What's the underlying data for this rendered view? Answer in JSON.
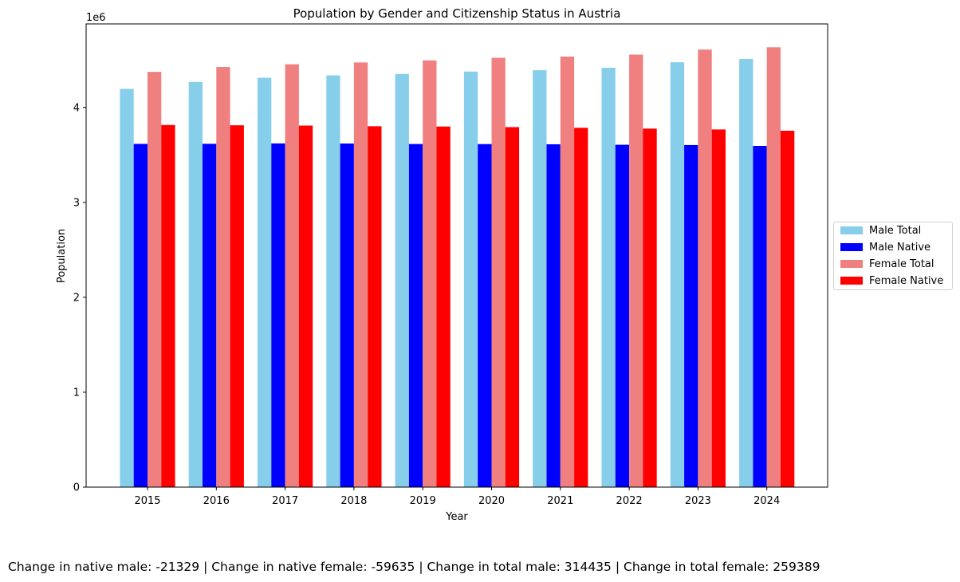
{
  "chart_data": {
    "type": "bar",
    "title": "Population by Gender and Citizenship Status in Austria",
    "xlabel": "Year",
    "ylabel": "Population",
    "y_scale_label": "1e6",
    "ylim": [
      0,
      4880000
    ],
    "y_ticks": [
      0,
      1000000,
      2000000,
      3000000,
      4000000
    ],
    "y_tick_labels": [
      "0",
      "1",
      "2",
      "3",
      "4"
    ],
    "legend_position": "center-right (outside)",
    "grid": false,
    "categories": [
      "2015",
      "2016",
      "2017",
      "2018",
      "2019",
      "2020",
      "2021",
      "2022",
      "2023",
      "2024"
    ],
    "series": [
      {
        "name": "Male Total",
        "color": "#87CEEB",
        "values": [
          4196000,
          4269000,
          4313000,
          4338000,
          4353000,
          4378000,
          4392000,
          4418000,
          4476000,
          4510000
        ]
      },
      {
        "name": "Male Native",
        "color": "#0000FF",
        "values": [
          3616000,
          3617000,
          3621000,
          3620000,
          3615000,
          3614000,
          3612000,
          3607000,
          3604000,
          3595000
        ]
      },
      {
        "name": "Female Total",
        "color": "#F08080",
        "values": [
          4375000,
          4426000,
          4455000,
          4474000,
          4496000,
          4523000,
          4536000,
          4557000,
          4610000,
          4634000
        ]
      },
      {
        "name": "Female Native",
        "color": "#FF0000",
        "values": [
          3815000,
          3812000,
          3809000,
          3802000,
          3799000,
          3793000,
          3786000,
          3777000,
          3768000,
          3755000
        ]
      }
    ]
  },
  "footer_text": "Change in native male: -21329 | Change in native female: -59635 | Change in total male: 314435 | Change in total female: 259389"
}
